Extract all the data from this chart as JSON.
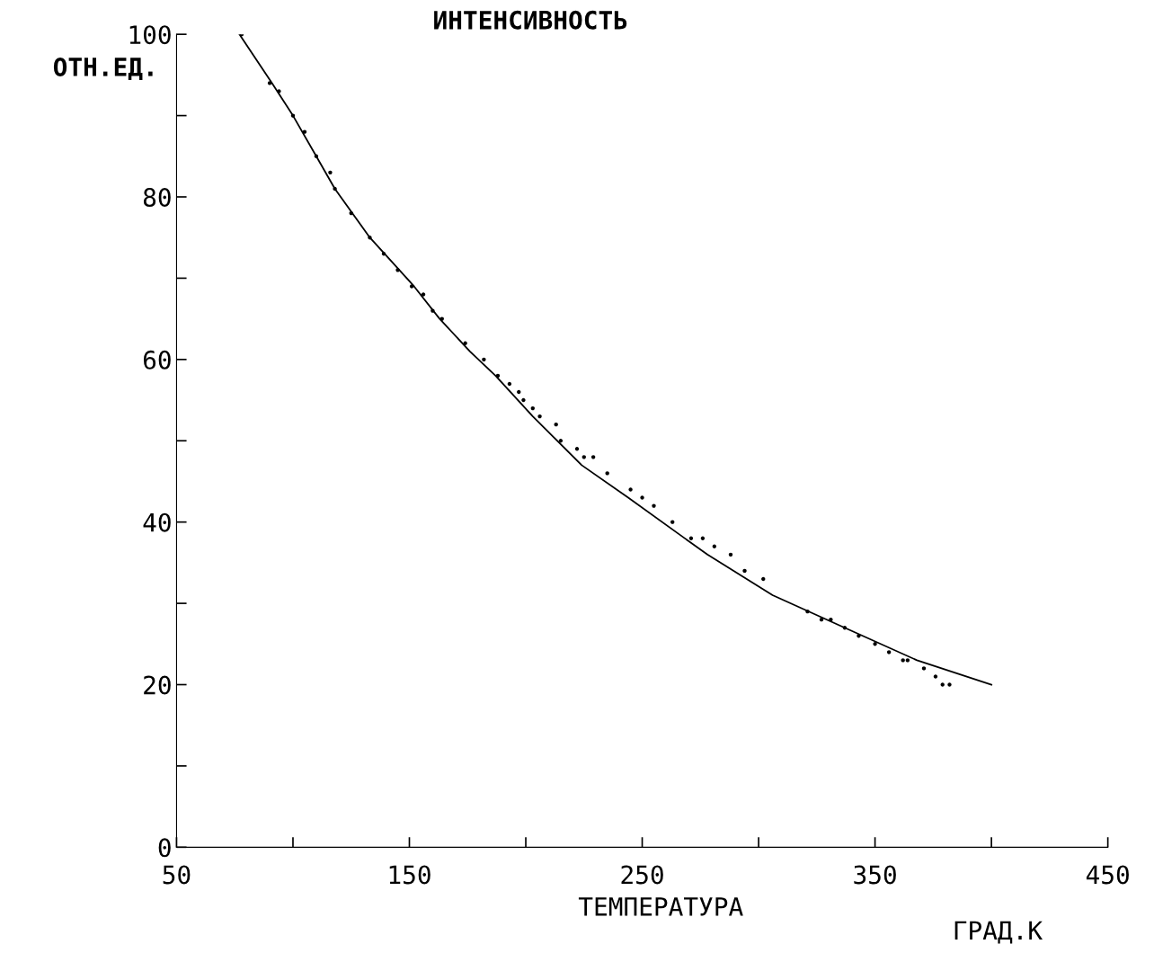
{
  "chart_data": {
    "type": "scatter",
    "title": "ИНТЕНСИВНОСТЬ",
    "xlabel": "ТЕМПЕРАТУРА",
    "ylabel": "ОТН.ЕД.",
    "annotations": [
      "ГРАД.К"
    ],
    "xlim": [
      50,
      450
    ],
    "ylim": [
      0,
      100
    ],
    "xticks": [
      50,
      {
        "value": 100,
        "label": null
      },
      150,
      {
        "value": 200,
        "label": null
      },
      250,
      {
        "value": 300,
        "label": null
      },
      350,
      {
        "value": 400,
        "label": null
      },
      450
    ],
    "yticks": [
      0,
      {
        "value": 10,
        "label": null
      },
      20,
      {
        "value": 30,
        "label": null
      },
      40,
      {
        "value": 50,
        "label": null
      },
      60,
      {
        "value": 70,
        "label": null
      },
      80,
      {
        "value": 90,
        "label": null
      },
      100
    ],
    "grid": false,
    "legend": false,
    "marker": "circle",
    "series": [
      {
        "color": "#000000",
        "x": [
          78,
          90,
          94,
          100,
          105,
          110,
          116,
          118,
          125,
          133,
          139,
          145,
          151,
          156,
          160,
          164,
          174,
          182,
          188,
          193,
          197,
          199,
          203,
          206,
          213,
          215,
          222,
          225,
          229,
          235,
          245,
          250,
          255,
          263,
          271,
          276,
          281,
          288,
          294,
          302,
          321,
          327,
          331,
          337,
          343,
          350,
          356,
          362,
          364,
          371,
          376,
          379,
          382
        ],
        "values": [
          100,
          94,
          93,
          90,
          88,
          85,
          83,
          81,
          78,
          75,
          73,
          71,
          69,
          68,
          66,
          65,
          62,
          60,
          58,
          57,
          56,
          55,
          54,
          53,
          52,
          50,
          49,
          48,
          48,
          46,
          44,
          43,
          42,
          40,
          38,
          38,
          37,
          36,
          34,
          33,
          29,
          28,
          28,
          27,
          26,
          25,
          24,
          23,
          23,
          22,
          21,
          20,
          20
        ]
      },
      {
        "type": "line",
        "color": "#000000",
        "marker": "none",
        "line_style": "solid",
        "x": [
          77,
          91,
          100,
          110,
          118,
          133,
          152,
          163,
          176,
          187,
          203,
          224,
          244,
          278,
          306,
          337,
          368,
          400
        ],
        "values": [
          100,
          94,
          90,
          85,
          81,
          75,
          69,
          65,
          61,
          58,
          53,
          47,
          43,
          36,
          31,
          27,
          23,
          20
        ]
      }
    ]
  }
}
